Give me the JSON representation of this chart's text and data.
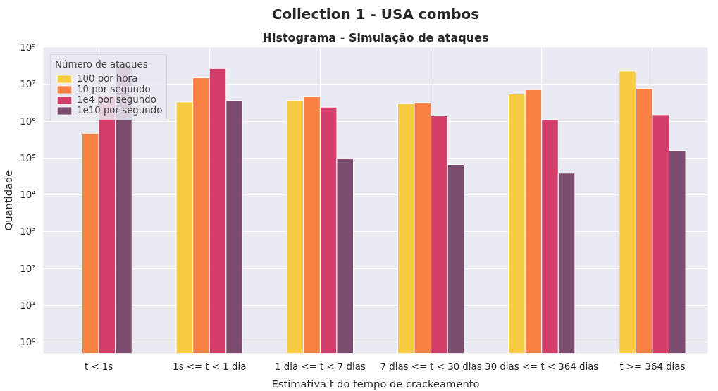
{
  "chart_data": {
    "type": "bar",
    "title": "Collection 1 - USA combos",
    "subtitle": "Histograma - Simulação de ataques",
    "xlabel": "Estimativa t do tempo de crackeamento",
    "ylabel": "Quantidade",
    "legend_title": "Número de ataques",
    "categories": [
      "t < 1s",
      "1s <= t < 1 dia",
      "1 dia <= t < 7 dias",
      "7 dias <= t < 30 dias",
      "30 dias <= t < 364 dias",
      "t >= 364 dias"
    ],
    "series": [
      {
        "name": "100 por hora",
        "color": "#f8c932",
        "values": [
          null,
          3300000,
          3600000,
          3000000,
          5500000,
          23000000
        ]
      },
      {
        "name": "10 por segundo",
        "color": "#fb7735",
        "values": [
          470000,
          15000000,
          4700000,
          3200000,
          7200000,
          7800000
        ]
      },
      {
        "name": "1e4 por segundo",
        "color": "#d02f5e",
        "values": [
          4900000,
          27000000,
          2400000,
          1400000,
          1100000,
          1500000
        ]
      },
      {
        "name": "1e10 por segundo",
        "color": "#723f63",
        "values": [
          34000000,
          3600000,
          100000,
          67000,
          39000,
          160000
        ]
      }
    ],
    "log": true,
    "ylim": [
      0.5,
      100000000
    ],
    "yticks": [
      {
        "value": 1,
        "label": "10⁰"
      },
      {
        "value": 10,
        "label": "10¹"
      },
      {
        "value": 100,
        "label": "10²"
      },
      {
        "value": 1000,
        "label": "10³"
      },
      {
        "value": 10000,
        "label": "10⁴"
      },
      {
        "value": 100000,
        "label": "10⁵"
      },
      {
        "value": 1000000,
        "label": "10⁶"
      },
      {
        "value": 10000000,
        "label": "10⁷"
      },
      {
        "value": 100000000,
        "label": "10⁸"
      }
    ],
    "grid": true,
    "legend": "top left"
  }
}
